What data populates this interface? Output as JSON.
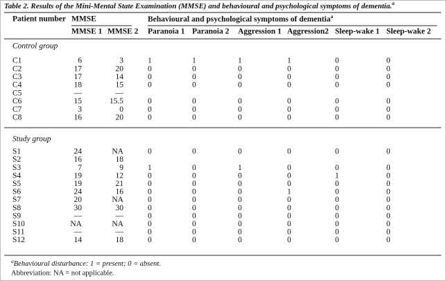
{
  "table": {
    "title": "Table 2. Results of the Mini-Mental State Examination (MMSE) and behavioural and psychological symptoms of dementia.",
    "title_note": "a",
    "header": {
      "patient": "Patient number",
      "mmse": "MMSE",
      "bpsd": "Behavioural and psychological symptoms of dementia",
      "bpsd_note": "a",
      "columns": [
        "MMSE 1",
        "MMSE 2",
        "Paranoia 1",
        "Paranoia 2",
        "Aggression 1",
        "Aggression2",
        "Sleep-wake 1",
        "Sleep-wake 2"
      ]
    },
    "groups": [
      {
        "label": "Control group",
        "rows": [
          [
            "C1",
            6,
            3,
            1,
            1,
            1,
            1,
            0,
            0
          ],
          [
            "C2",
            17,
            20,
            0,
            0,
            0,
            0,
            0,
            0
          ],
          [
            "C3",
            17,
            14,
            0,
            0,
            0,
            0,
            0,
            0
          ],
          [
            "C4",
            18,
            15,
            0,
            0,
            0,
            0,
            0,
            0
          ],
          [
            "C5",
            "—",
            "—",
            null,
            null,
            null,
            null,
            null,
            null
          ],
          [
            "C6",
            15,
            15.5,
            0,
            0,
            0,
            0,
            0,
            0
          ],
          [
            "C7",
            3,
            0,
            0,
            0,
            0,
            0,
            0,
            0
          ],
          [
            "C8",
            16,
            20,
            0,
            0,
            0,
            0,
            0,
            0
          ]
        ]
      },
      {
        "label": "Study group",
        "rows": [
          [
            "S1",
            24,
            "NA",
            0,
            0,
            0,
            0,
            0,
            0
          ],
          [
            "S2",
            16,
            18,
            null,
            null,
            null,
            null,
            null,
            null
          ],
          [
            "S3",
            7,
            9,
            1,
            0,
            1,
            0,
            0,
            0
          ],
          [
            "S4",
            19,
            12,
            0,
            0,
            0,
            0,
            1,
            0
          ],
          [
            "S5",
            19,
            21,
            0,
            0,
            0,
            0,
            0,
            0
          ],
          [
            "S6",
            24,
            16,
            0,
            0,
            0,
            1,
            0,
            0
          ],
          [
            "S7",
            20,
            "NA",
            0,
            0,
            0,
            0,
            0,
            0
          ],
          [
            "S8",
            30,
            30,
            0,
            0,
            0,
            0,
            0,
            0
          ],
          [
            "S9",
            "—",
            "—",
            0,
            0,
            0,
            0,
            0,
            0
          ],
          [
            "S10",
            "NA",
            "NA",
            0,
            0,
            0,
            0,
            0,
            0
          ],
          [
            "S11",
            "—",
            "—",
            0,
            0,
            0,
            0,
            0,
            0
          ],
          [
            "S12",
            14,
            18,
            0,
            0,
            0,
            0,
            0,
            0
          ]
        ]
      }
    ],
    "footnotes": [
      {
        "mark": "a",
        "text": "Behavioural disturbance: 1 = present; 0 = absent."
      },
      {
        "text": "Abbreviation: NA = not applicable."
      }
    ]
  }
}
